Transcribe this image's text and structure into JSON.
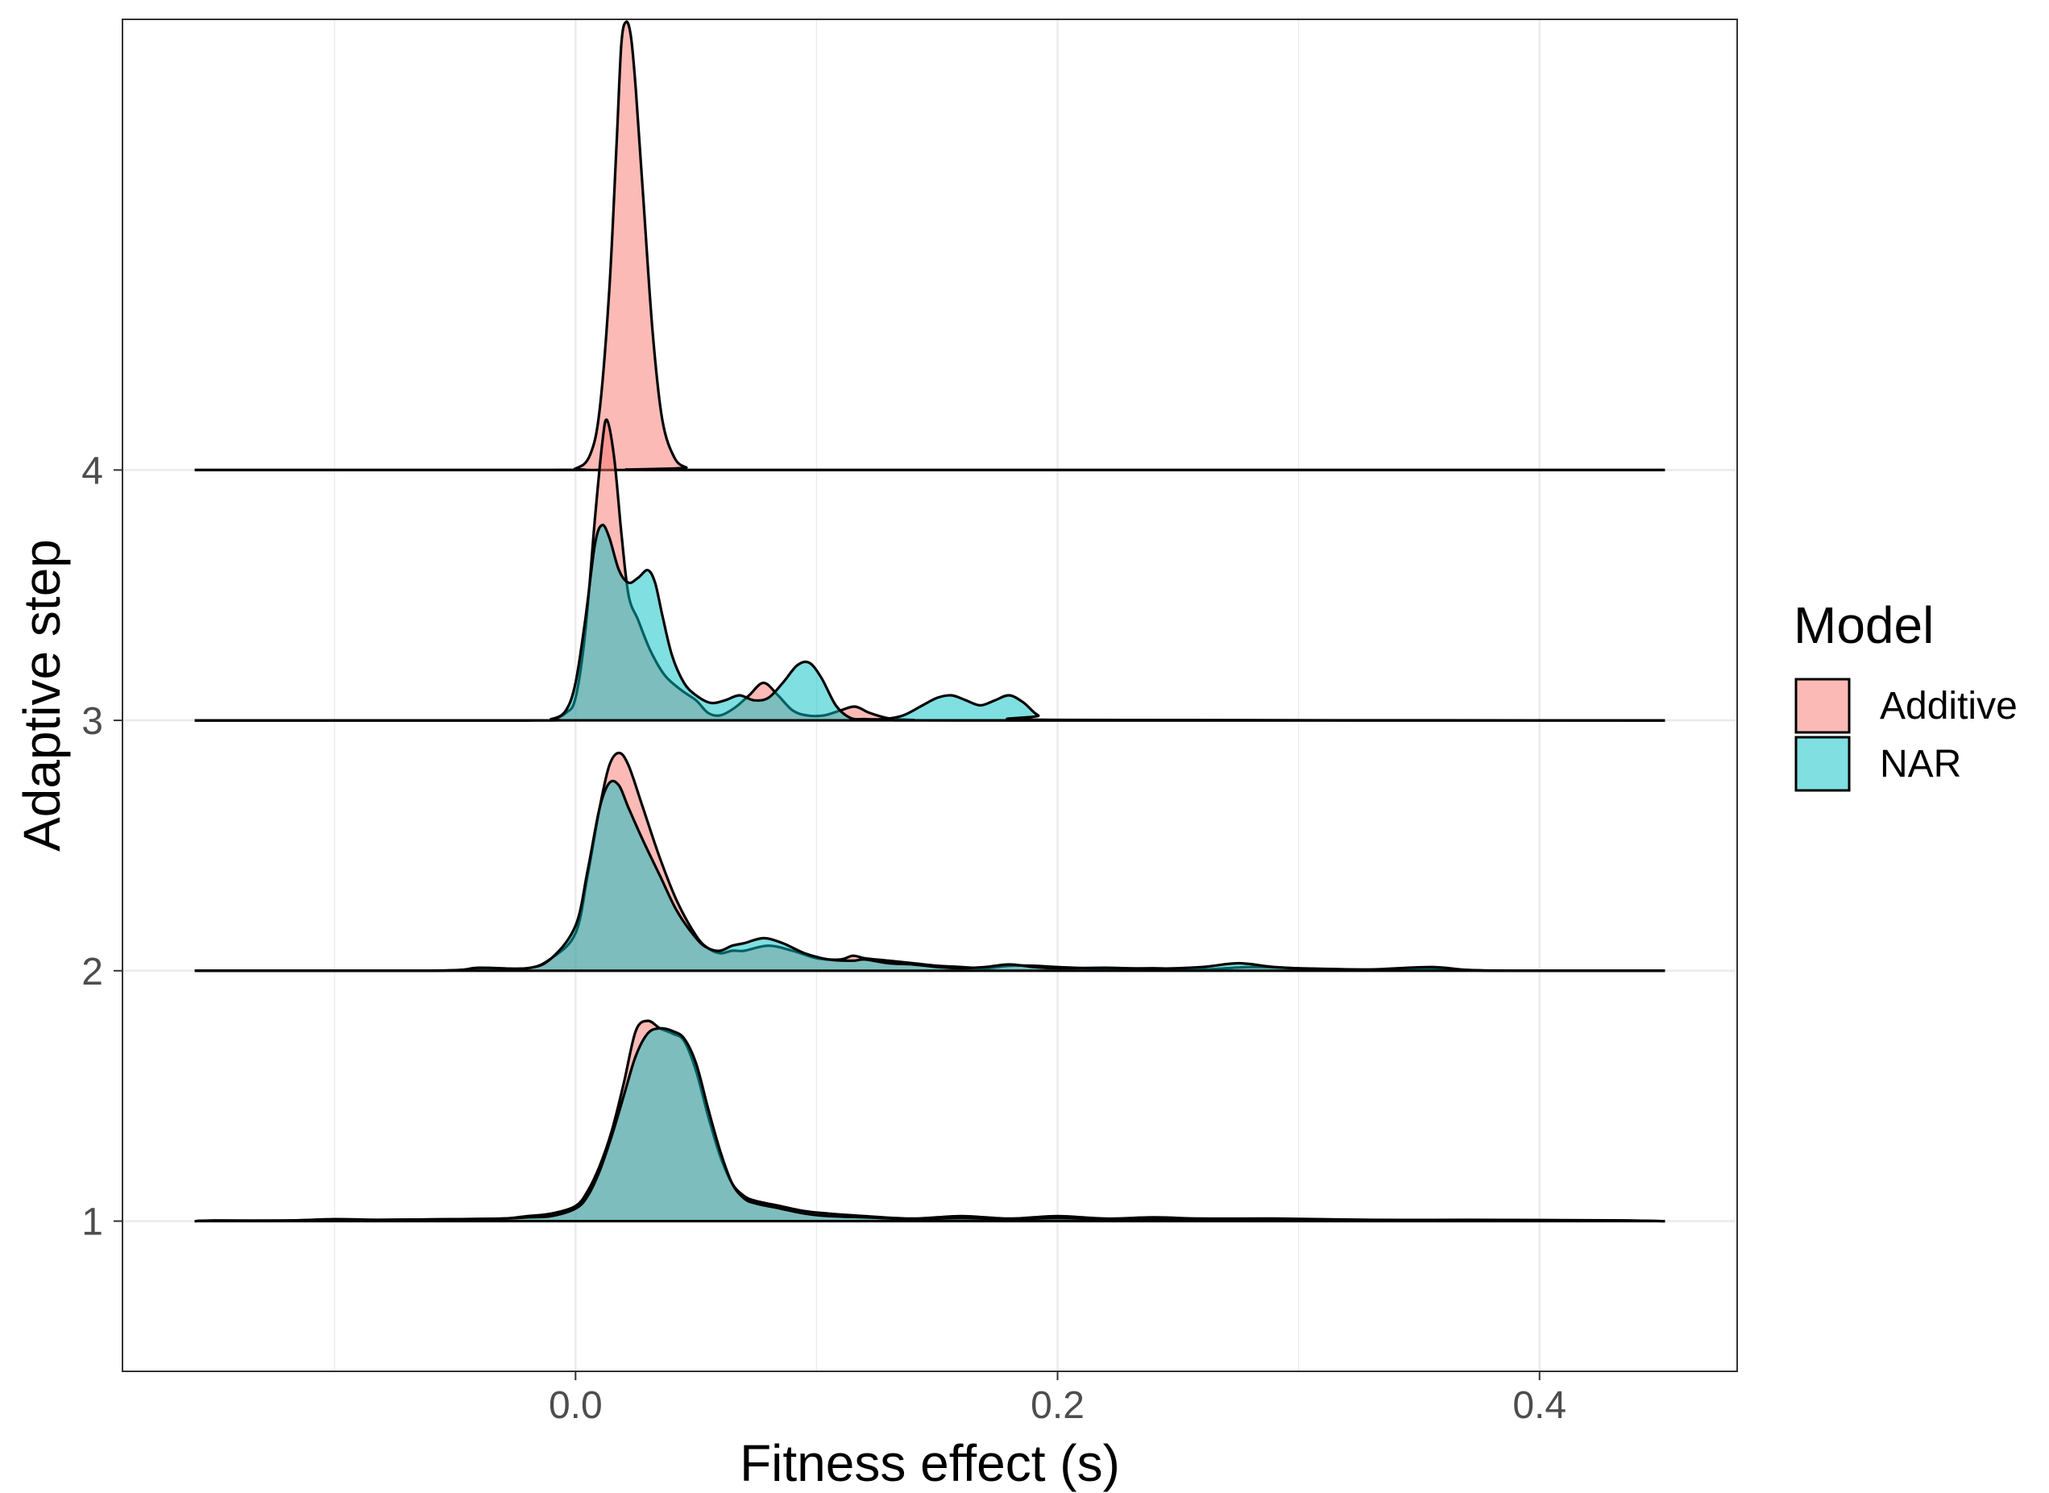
{
  "chart_data": {
    "type": "area",
    "subtype": "ridgeline-density",
    "xlabel": "Fitness effect (s)",
    "ylabel": "Adaptive step",
    "xlim": [
      -0.188,
      0.482
    ],
    "ylim": [
      0.4,
      5.8
    ],
    "x_ticks": [
      0.0,
      0.2,
      0.4
    ],
    "x_tick_labels": [
      "0.0",
      "0.2",
      "0.4"
    ],
    "y_ticks": [
      1,
      2,
      3,
      4
    ],
    "y_tick_labels": [
      "1",
      "2",
      "3",
      "4"
    ],
    "x_minor_ticks": [
      -0.1,
      0.1,
      0.3
    ],
    "x_range_drawn": [
      -0.158,
      0.452
    ],
    "grid": true,
    "legend": {
      "title": "Model",
      "position": "right",
      "entries": [
        {
          "label": "Additive",
          "color": "#f8766d"
        },
        {
          "label": "NAR",
          "color": "#00bfc4"
        }
      ]
    },
    "fill_alpha": 0.5,
    "ridges": [
      {
        "step": 4,
        "series": [
          {
            "name": "Additive",
            "x": [
              -0.158,
              -0.01,
              0.0,
              0.006,
              0.01,
              0.014,
              0.017,
              0.019,
              0.021,
              0.023,
              0.025,
              0.028,
              0.032,
              0.036,
              0.041,
              0.046,
              0.052,
              0.452
            ],
            "y": [
              0,
              0,
              0.006,
              0.06,
              0.24,
              0.72,
              1.3,
              1.7,
              1.79,
              1.73,
              1.52,
              1.1,
              0.55,
              0.2,
              0.05,
              0.01,
              0,
              0
            ]
          }
        ]
      },
      {
        "step": 3,
        "series": [
          {
            "name": "Additive",
            "x": [
              -0.158,
              -0.02,
              -0.01,
              -0.004,
              0.0,
              0.004,
              0.008,
              0.011,
              0.013,
              0.016,
              0.019,
              0.022,
              0.026,
              0.031,
              0.037,
              0.044,
              0.05,
              0.055,
              0.06,
              0.066,
              0.072,
              0.078,
              0.084,
              0.09,
              0.096,
              0.103,
              0.11,
              0.116,
              0.122,
              0.13,
              0.14,
              0.16,
              0.452
            ],
            "y": [
              0,
              0,
              0.005,
              0.03,
              0.09,
              0.35,
              0.8,
              1.1,
              1.2,
              1.05,
              0.75,
              0.5,
              0.4,
              0.28,
              0.18,
              0.12,
              0.08,
              0.03,
              0.02,
              0.05,
              0.1,
              0.15,
              0.1,
              0.04,
              0.02,
              0.02,
              0.04,
              0.055,
              0.03,
              0.008,
              0.002,
              0,
              0
            ]
          },
          {
            "name": "NAR",
            "x": [
              -0.158,
              -0.02,
              -0.01,
              -0.004,
              0.0,
              0.004,
              0.008,
              0.011,
              0.014,
              0.018,
              0.022,
              0.026,
              0.03,
              0.033,
              0.036,
              0.04,
              0.045,
              0.05,
              0.056,
              0.062,
              0.068,
              0.074,
              0.08,
              0.086,
              0.092,
              0.097,
              0.102,
              0.108,
              0.114,
              0.12,
              0.128,
              0.136,
              0.144,
              0.15,
              0.156,
              0.162,
              0.168,
              0.174,
              0.18,
              0.186,
              0.192,
              0.2,
              0.452
            ],
            "y": [
              0,
              0,
              0.005,
              0.04,
              0.15,
              0.4,
              0.7,
              0.78,
              0.73,
              0.6,
              0.55,
              0.57,
              0.6,
              0.55,
              0.42,
              0.26,
              0.15,
              0.1,
              0.07,
              0.08,
              0.1,
              0.08,
              0.09,
              0.15,
              0.22,
              0.23,
              0.17,
              0.06,
              0.01,
              0.005,
              0.005,
              0.02,
              0.06,
              0.09,
              0.1,
              0.08,
              0.06,
              0.08,
              0.1,
              0.07,
              0.02,
              0.002,
              0
            ]
          }
        ]
      },
      {
        "step": 2,
        "series": [
          {
            "name": "Additive",
            "x": [
              -0.158,
              -0.06,
              -0.04,
              -0.02,
              -0.01,
              0.0,
              0.005,
              0.01,
              0.014,
              0.018,
              0.022,
              0.028,
              0.035,
              0.042,
              0.05,
              0.055,
              0.06,
              0.065,
              0.07,
              0.08,
              0.09,
              0.1,
              0.11,
              0.115,
              0.12,
              0.13,
              0.14,
              0.15,
              0.16,
              0.17,
              0.18,
              0.19,
              0.2,
              0.22,
              0.24,
              0.26,
              0.28,
              0.3,
              0.33,
              0.355,
              0.37,
              0.39,
              0.452
            ],
            "y": [
              0,
              0,
              0.01,
              0.01,
              0.05,
              0.15,
              0.38,
              0.65,
              0.82,
              0.87,
              0.82,
              0.65,
              0.45,
              0.28,
              0.14,
              0.09,
              0.07,
              0.08,
              0.08,
              0.1,
              0.08,
              0.05,
              0.045,
              0.06,
              0.05,
              0.04,
              0.03,
              0.02,
              0.015,
              0.01,
              0.02,
              0.02,
              0.015,
              0.008,
              0.01,
              0.005,
              0.015,
              0.01,
              0.005,
              0.01,
              0.003,
              0,
              0
            ]
          },
          {
            "name": "NAR",
            "x": [
              -0.158,
              -0.06,
              -0.04,
              -0.02,
              -0.01,
              0.0,
              0.005,
              0.01,
              0.014,
              0.018,
              0.022,
              0.028,
              0.035,
              0.042,
              0.05,
              0.055,
              0.06,
              0.065,
              0.07,
              0.078,
              0.086,
              0.095,
              0.105,
              0.115,
              0.12,
              0.13,
              0.14,
              0.15,
              0.16,
              0.17,
              0.18,
              0.19,
              0.2,
              0.22,
              0.24,
              0.26,
              0.275,
              0.29,
              0.31,
              0.33,
              0.355,
              0.37,
              0.39,
              0.452
            ],
            "y": [
              0,
              0,
              0.012,
              0.01,
              0.05,
              0.18,
              0.4,
              0.65,
              0.75,
              0.74,
              0.65,
              0.52,
              0.38,
              0.24,
              0.13,
              0.09,
              0.08,
              0.1,
              0.11,
              0.13,
              0.11,
              0.07,
              0.045,
              0.04,
              0.045,
              0.03,
              0.025,
              0.015,
              0.01,
              0.015,
              0.025,
              0.015,
              0.01,
              0.012,
              0.008,
              0.015,
              0.03,
              0.015,
              0.005,
              0.005,
              0.015,
              0.003,
              0,
              0
            ]
          }
        ]
      },
      {
        "step": 1,
        "series": [
          {
            "name": "Additive",
            "x": [
              -0.158,
              -0.15,
              -0.12,
              -0.1,
              -0.08,
              -0.05,
              -0.03,
              -0.02,
              -0.01,
              0.0,
              0.005,
              0.01,
              0.015,
              0.02,
              0.025,
              0.03,
              0.035,
              0.04,
              0.045,
              0.05,
              0.055,
              0.06,
              0.065,
              0.07,
              0.075,
              0.085,
              0.095,
              0.105,
              0.12,
              0.14,
              0.16,
              0.18,
              0.2,
              0.22,
              0.24,
              0.26,
              0.29,
              0.33,
              0.37,
              0.43,
              0.452
            ],
            "y": [
              0,
              0.002,
              0.002,
              0.008,
              0.005,
              0.008,
              0.01,
              0.02,
              0.03,
              0.06,
              0.12,
              0.22,
              0.36,
              0.55,
              0.76,
              0.8,
              0.77,
              0.75,
              0.72,
              0.6,
              0.42,
              0.26,
              0.15,
              0.1,
              0.08,
              0.06,
              0.04,
              0.03,
              0.02,
              0.01,
              0.02,
              0.01,
              0.02,
              0.01,
              0.015,
              0.01,
              0.01,
              0.005,
              0.005,
              0.003,
              0
            ]
          },
          {
            "name": "NAR",
            "x": [
              -0.158,
              -0.15,
              -0.12,
              -0.1,
              -0.08,
              -0.05,
              -0.03,
              -0.02,
              -0.01,
              0.0,
              0.005,
              0.01,
              0.015,
              0.02,
              0.025,
              0.03,
              0.035,
              0.04,
              0.045,
              0.05,
              0.055,
              0.06,
              0.065,
              0.07,
              0.075,
              0.085,
              0.095,
              0.105,
              0.12,
              0.14,
              0.16,
              0.18,
              0.2,
              0.22,
              0.24,
              0.26,
              0.29,
              0.33,
              0.37,
              0.43,
              0.452
            ],
            "y": [
              0,
              0.002,
              0.002,
              0.005,
              0.005,
              0.008,
              0.01,
              0.015,
              0.02,
              0.05,
              0.1,
              0.2,
              0.34,
              0.5,
              0.66,
              0.75,
              0.77,
              0.76,
              0.73,
              0.63,
              0.45,
              0.28,
              0.15,
              0.09,
              0.07,
              0.05,
              0.03,
              0.02,
              0.015,
              0.008,
              0.012,
              0.008,
              0.012,
              0.008,
              0.01,
              0.008,
              0.008,
              0.004,
              0.004,
              0.002,
              0
            ]
          }
        ]
      }
    ]
  }
}
